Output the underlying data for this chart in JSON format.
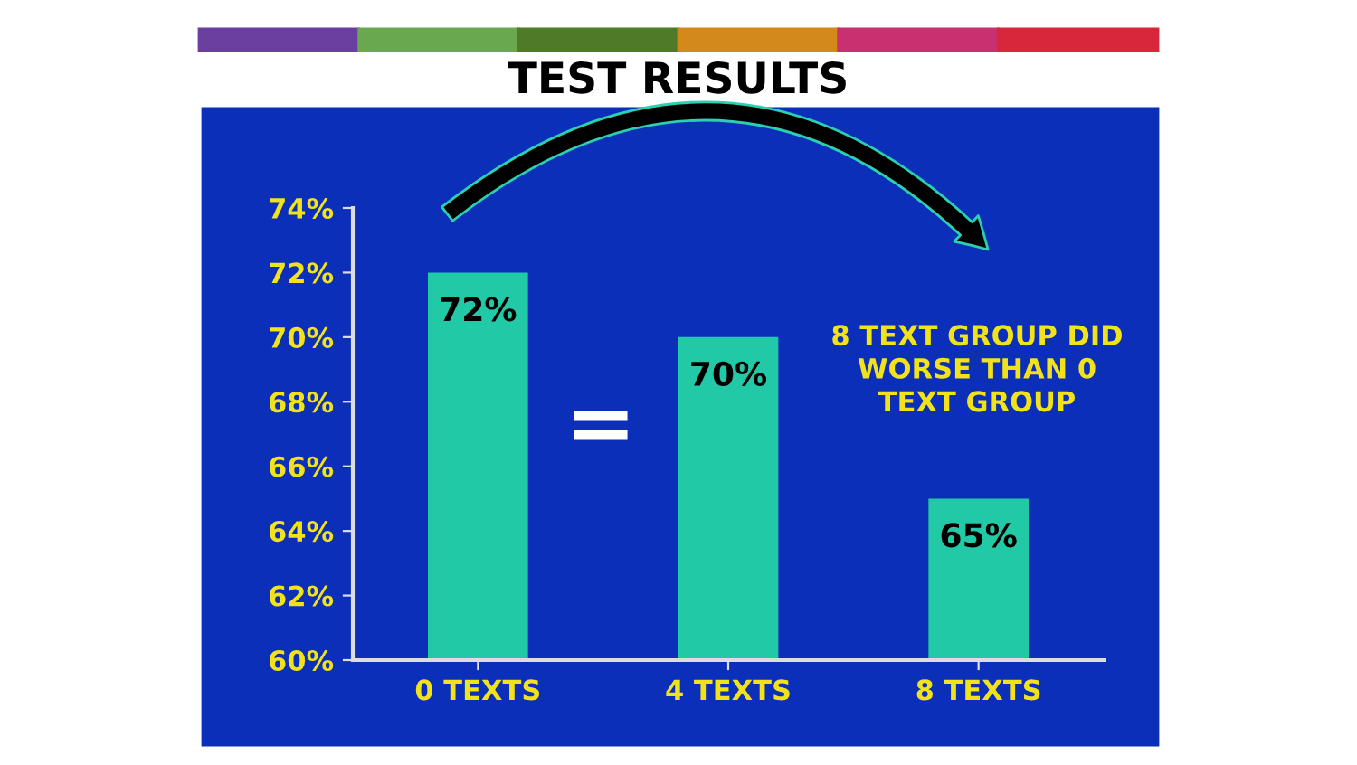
{
  "chart_data": {
    "type": "bar",
    "title": "TEST RESULTS",
    "categories": [
      "0 TEXTS",
      "4 TEXTS",
      "8 TEXTS"
    ],
    "values": [
      72,
      70,
      65
    ],
    "value_labels": [
      "72%",
      "70%",
      "65%"
    ],
    "color": "#22c9a6",
    "ylim": [
      60,
      74
    ],
    "yticks": [
      {
        "value": 60,
        "label": "60%"
      },
      {
        "value": 62,
        "label": "62%"
      },
      {
        "value": 64,
        "label": "64%"
      },
      {
        "value": 66,
        "label": "66%"
      },
      {
        "value": 68,
        "label": "68%"
      },
      {
        "value": 70,
        "label": "70%"
      },
      {
        "value": 72,
        "label": "72%"
      },
      {
        "value": 74,
        "label": "74%"
      }
    ],
    "grid": false,
    "annotations": [
      "8 TEXT GROUP DID\nWORSE THAN 0\nTEXT GROUP",
      "="
    ]
  }
}
